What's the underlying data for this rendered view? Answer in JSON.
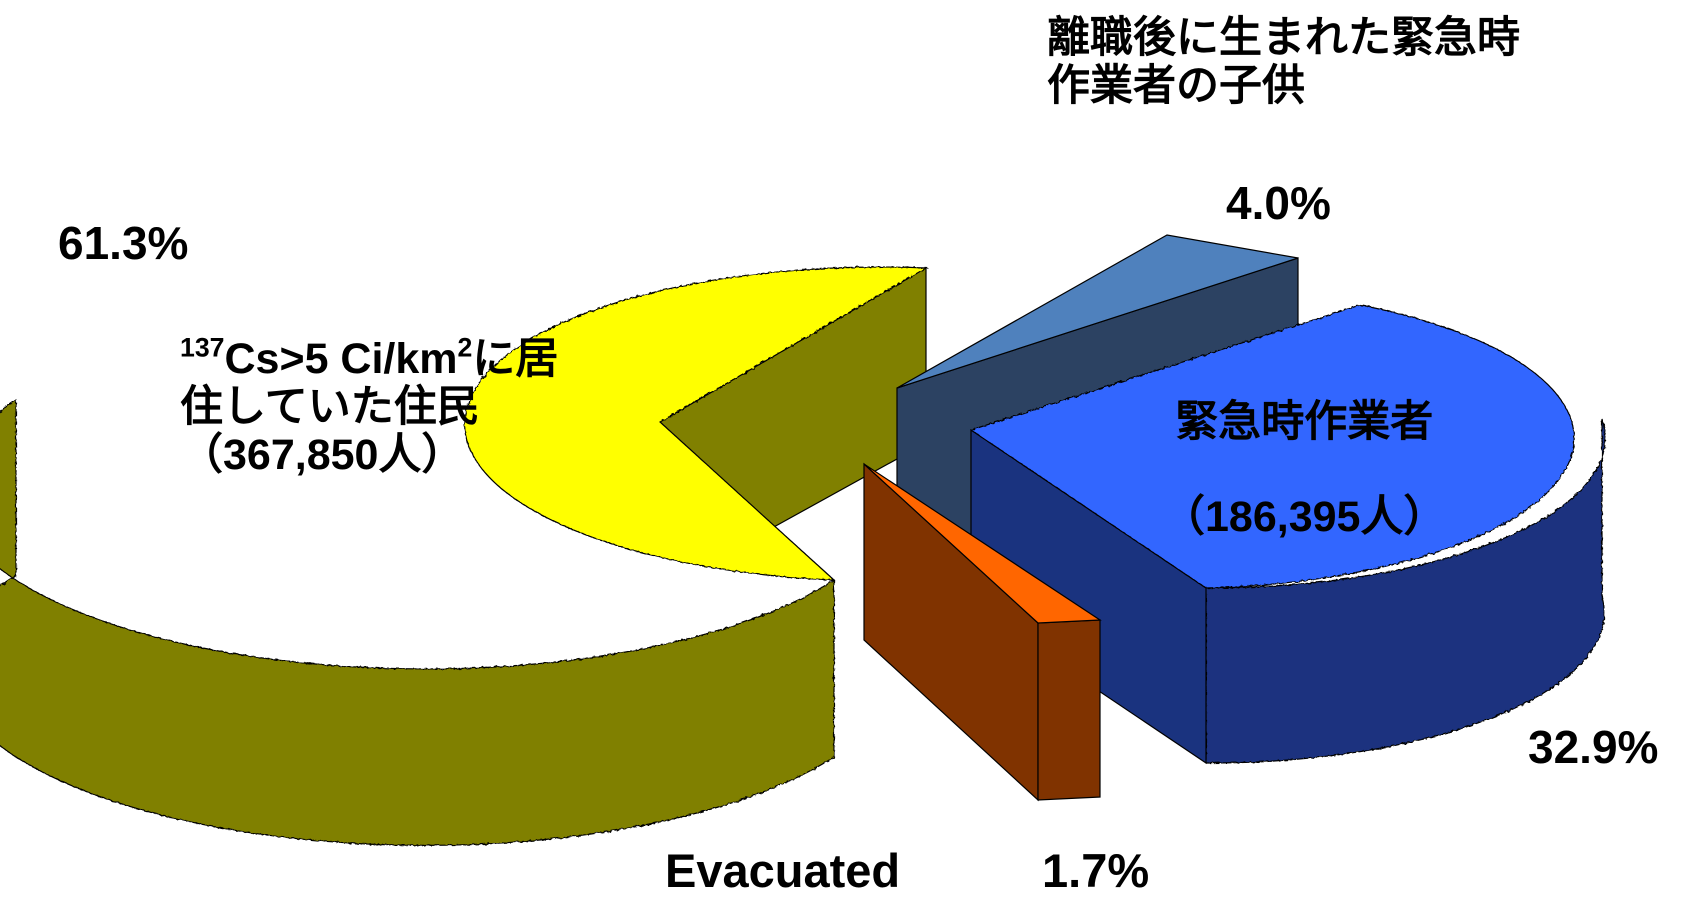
{
  "chart_data": {
    "type": "pie",
    "style": "3d-exploded",
    "slices": [
      {
        "key": "residents",
        "label_sup": "137",
        "label_line1": "Cs>5 Ci/km",
        "label_sup2": "2",
        "label_line1_tail": "に居",
        "label_line2": "住していた住民",
        "label_line3": "（367,850人）",
        "percent_label": "61.3%",
        "value": 61.3,
        "count": 367850,
        "color": "#FFFF00",
        "side_color": "#808000"
      },
      {
        "key": "children",
        "label_line1": "離職後に生まれた緊急時",
        "label_line2": "作業者の子供",
        "percent_label": "4.0%",
        "value": 4.0,
        "color": "#4F81BD",
        "side_color": "#2C4262"
      },
      {
        "key": "workers",
        "label_line1": "緊急時作業者",
        "label_line2": "（186,395人）",
        "percent_label": "32.9%",
        "value": 32.9,
        "count": 186395,
        "color": "#3366FF",
        "side_color": "#1A337F"
      },
      {
        "key": "evacuated",
        "label": "Evacuated",
        "percent_label": "1.7%",
        "value": 1.7,
        "color": "#FF6600",
        "side_color": "#803300"
      }
    ]
  }
}
